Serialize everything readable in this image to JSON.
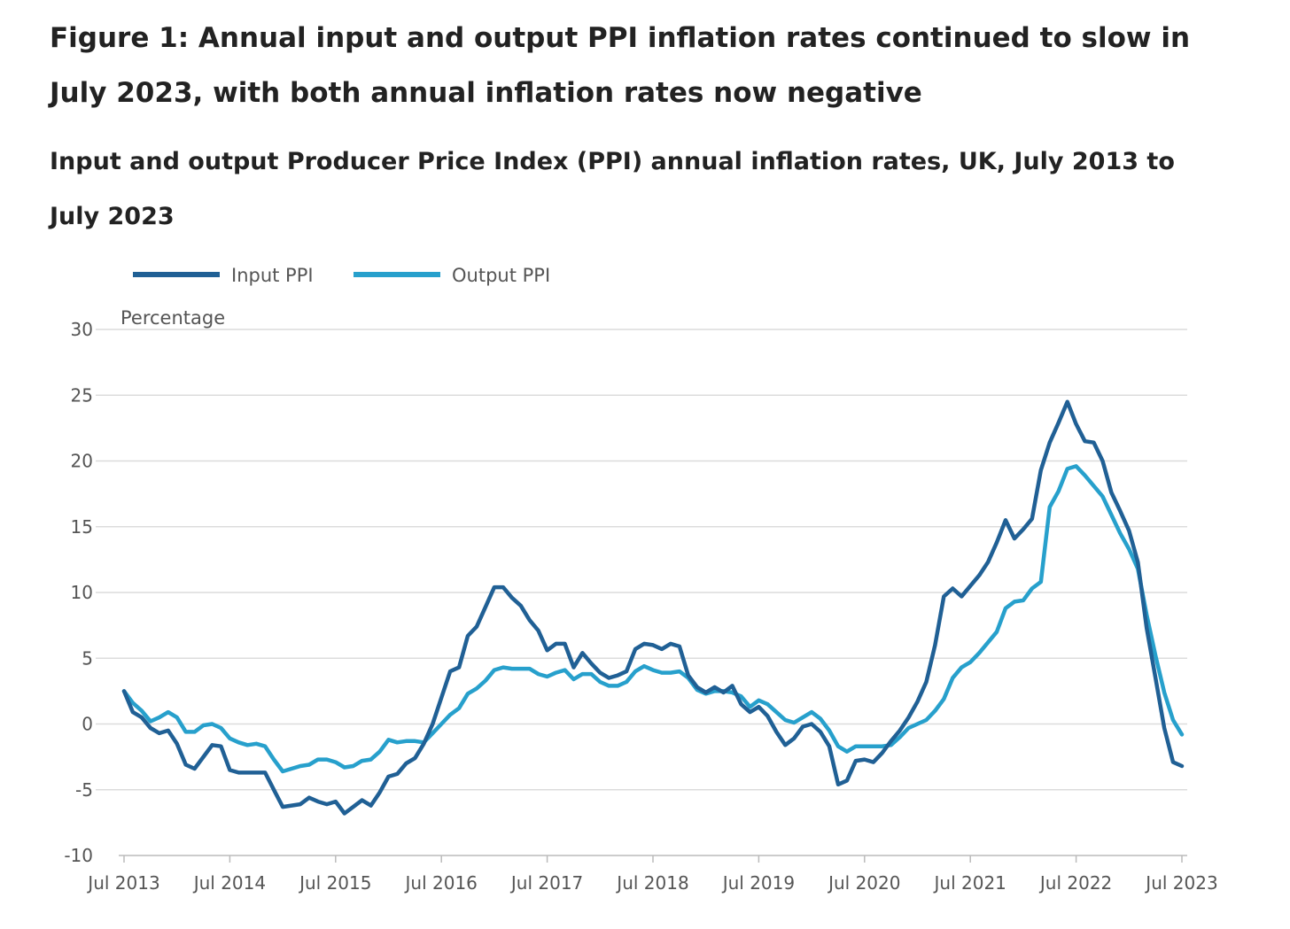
{
  "title": "Figure 1: Annual input and output PPI inflation rates continued to slow in July 2023, with both annual inflation rates now negative",
  "subtitle": "Input and output Producer Price Index (PPI) annual inflation rates, UK, July 2013 to July 2023",
  "chart_data": {
    "type": "line",
    "title": "Figure 1: Annual input and output PPI inflation rates continued to slow in July 2023, with both annual inflation rates now negative",
    "subtitle": "Input and output Producer Price Index (PPI) annual inflation rates, UK, July 2013 to July 2023",
    "xlabel": "",
    "ylabel": "Percentage",
    "ylim": [
      -10,
      30
    ],
    "yticks": [
      30,
      25,
      20,
      15,
      10,
      5,
      0,
      -5,
      -10
    ],
    "xticks": [
      "Jul 2013",
      "Jul 2014",
      "Jul 2015",
      "Jul 2016",
      "Jul 2017",
      "Jul 2018",
      "Jul 2019",
      "Jul 2020",
      "Jul 2021",
      "Jul 2022",
      "Jul 2023"
    ],
    "x_frequency": "monthly, Jul 2013 to Jul 2023",
    "grid": true,
    "legend_position": "top-left",
    "series": [
      {
        "name": "Input PPI",
        "color": "#206095",
        "values": [
          2.5,
          0.9,
          0.5,
          -0.3,
          -0.7,
          -0.5,
          -1.5,
          -3.1,
          -3.4,
          -2.5,
          -1.6,
          -1.7,
          -3.5,
          -3.7,
          -3.7,
          -3.7,
          -3.7,
          -5.0,
          -6.3,
          -6.2,
          -6.1,
          -5.6,
          -5.9,
          -6.1,
          -5.9,
          -6.8,
          -6.3,
          -5.8,
          -6.2,
          -5.2,
          -4.0,
          -3.8,
          -3.0,
          -2.6,
          -1.5,
          0.0,
          2.0,
          4.0,
          4.3,
          6.7,
          7.4,
          8.9,
          10.4,
          10.4,
          9.6,
          9.0,
          7.9,
          7.1,
          5.6,
          6.1,
          6.1,
          4.3,
          5.4,
          4.6,
          3.9,
          3.5,
          3.7,
          4.0,
          5.7,
          6.1,
          6.0,
          5.7,
          6.1,
          5.9,
          3.7,
          2.8,
          2.4,
          2.8,
          2.4,
          2.9,
          1.5,
          0.9,
          1.3,
          0.6,
          -0.6,
          -1.6,
          -1.1,
          -0.2,
          0.0,
          -0.6,
          -1.7,
          -4.6,
          -4.3,
          -2.8,
          -2.7,
          -2.9,
          -2.2,
          -1.3,
          -0.5,
          0.5,
          1.7,
          3.2,
          6.0,
          9.7,
          10.3,
          9.7,
          10.5,
          11.3,
          12.3,
          13.8,
          15.5,
          14.1,
          14.8,
          15.6,
          19.3,
          21.4,
          22.9,
          24.5,
          22.8,
          21.5,
          21.4,
          20.0,
          17.6,
          16.2,
          14.7,
          12.3,
          7.3,
          3.5,
          -0.3,
          -2.9,
          -3.2
        ]
      },
      {
        "name": "Output PPI",
        "color": "#27a0cc",
        "values": [
          2.5,
          1.6,
          1.0,
          0.2,
          0.5,
          0.9,
          0.5,
          -0.6,
          -0.6,
          -0.1,
          0.0,
          -0.3,
          -1.1,
          -1.4,
          -1.6,
          -1.5,
          -1.7,
          -2.7,
          -3.6,
          -3.4,
          -3.2,
          -3.1,
          -2.7,
          -2.7,
          -2.9,
          -3.3,
          -3.2,
          -2.8,
          -2.7,
          -2.1,
          -1.2,
          -1.4,
          -1.3,
          -1.3,
          -1.4,
          -0.7,
          0.0,
          0.7,
          1.2,
          2.3,
          2.7,
          3.3,
          4.1,
          4.3,
          4.2,
          4.2,
          4.2,
          3.8,
          3.6,
          3.9,
          4.1,
          3.4,
          3.8,
          3.8,
          3.2,
          2.9,
          2.9,
          3.2,
          4.0,
          4.4,
          4.1,
          3.9,
          3.9,
          4.0,
          3.5,
          2.6,
          2.3,
          2.5,
          2.5,
          2.4,
          2.1,
          1.3,
          1.8,
          1.5,
          0.9,
          0.3,
          0.1,
          0.5,
          0.9,
          0.4,
          -0.5,
          -1.7,
          -2.1,
          -1.7,
          -1.7,
          -1.7,
          -1.7,
          -1.6,
          -1.0,
          -0.3,
          0.0,
          0.3,
          1.0,
          1.9,
          3.5,
          4.3,
          4.7,
          5.4,
          6.2,
          7.0,
          8.8,
          9.3,
          9.4,
          10.3,
          10.8,
          16.5,
          17.7,
          19.4,
          19.6,
          18.9,
          18.1,
          17.3,
          15.9,
          14.5,
          13.3,
          11.8,
          8.3,
          5.2,
          2.4,
          0.3,
          -0.8
        ]
      }
    ]
  }
}
